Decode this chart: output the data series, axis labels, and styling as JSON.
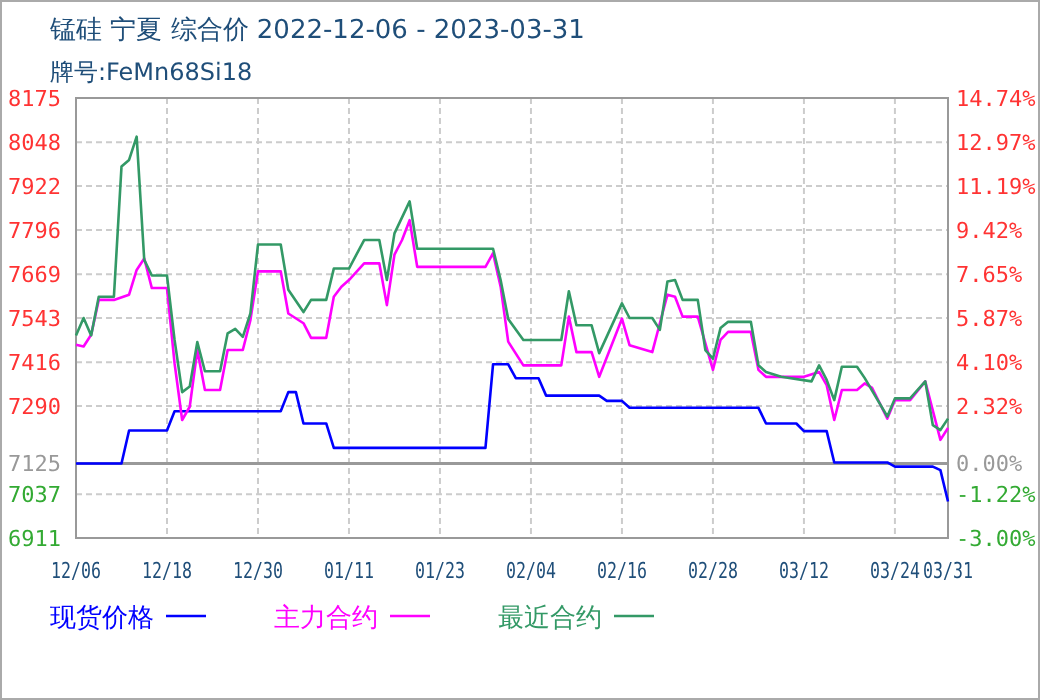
{
  "chart_data": {
    "type": "line",
    "title": "锰硅  宁夏  综合价  2022-12-06 - 2023-03-31",
    "subtitle": "牌号:FeMn68Si18",
    "xlim": [
      "2022-12-06",
      "2023-03-31"
    ],
    "xticks": [
      {
        "value": "2022-12-06",
        "label": "12/06"
      },
      {
        "value": "2022-12-18",
        "label": "12/18"
      },
      {
        "value": "2022-12-30",
        "label": "12/30"
      },
      {
        "value": "2023-01-11",
        "label": "01/11"
      },
      {
        "value": "2023-01-23",
        "label": "01/23"
      },
      {
        "value": "2023-02-04",
        "label": "02/04"
      },
      {
        "value": "2023-02-16",
        "label": "02/16"
      },
      {
        "value": "2023-02-28",
        "label": "02/28"
      },
      {
        "value": "2023-03-12",
        "label": "03/12"
      },
      {
        "value": "2023-03-24",
        "label": "03/24"
      },
      {
        "value": "2023-03-31",
        "label": "03/31"
      }
    ],
    "ylim": [
      6911,
      8175
    ],
    "yticks": [
      6911,
      7037,
      7125,
      7290,
      7416,
      7543,
      7669,
      7796,
      7922,
      8048,
      8175
    ],
    "y2lim": [
      -3.0,
      14.74
    ],
    "y2ticks": [
      {
        "value": -3,
        "label": "-3.00%"
      },
      {
        "value": -1.22,
        "label": "-1.22%"
      },
      {
        "value": 0,
        "label": "0.00%"
      },
      {
        "value": 2.32,
        "label": "2.32%"
      },
      {
        "value": 4.1,
        "label": "4.10%"
      },
      {
        "value": 5.87,
        "label": "5.87%"
      },
      {
        "value": 7.65,
        "label": "7.65%"
      },
      {
        "value": 9.42,
        "label": "9.42%"
      },
      {
        "value": 11.19,
        "label": "11.19%"
      },
      {
        "value": 12.97,
        "label": "12.97%"
      },
      {
        "value": 14.74,
        "label": "14.74%"
      }
    ],
    "grid": true,
    "legend": "bottom",
    "marker": "none",
    "line_style": "solid",
    "ref_lines": [
      {
        "axis": "y2",
        "value": 0,
        "color": "#999999"
      }
    ],
    "series": [
      {
        "name": "现货价格",
        "color": "#0000ff",
        "x": [
          "2022-12-06",
          "2022-12-12",
          "2022-12-13",
          "2022-12-18",
          "2022-12-19",
          "2023-01-02",
          "2023-01-03",
          "2023-01-04",
          "2023-01-05",
          "2023-01-08",
          "2023-01-09",
          "2023-01-29",
          "2023-01-30",
          "2023-02-01",
          "2023-02-02",
          "2023-02-05",
          "2023-02-06",
          "2023-02-13",
          "2023-02-14",
          "2023-02-16",
          "2023-02-17",
          "2023-03-06",
          "2023-03-07",
          "2023-03-11",
          "2023-03-12",
          "2023-03-15",
          "2023-03-16",
          "2023-03-23",
          "2023-03-24",
          "2023-03-29",
          "2023-03-30",
          "2023-03-31"
        ],
        "values": [
          7125,
          7125,
          7220,
          7220,
          7275,
          7275,
          7330,
          7330,
          7240,
          7240,
          7170,
          7170,
          7410,
          7410,
          7370,
          7370,
          7320,
          7320,
          7305,
          7305,
          7285,
          7285,
          7240,
          7240,
          7218,
          7218,
          7128,
          7128,
          7116,
          7116,
          7106,
          7016
        ]
      },
      {
        "name": "主力合约",
        "color": "#ff00ff",
        "x": [
          "2022-12-06",
          "2022-12-07",
          "2022-12-08",
          "2022-12-09",
          "2022-12-11",
          "2022-12-13",
          "2022-12-14",
          "2022-12-15",
          "2022-12-16",
          "2022-12-18",
          "2022-12-19",
          "2022-12-20",
          "2022-12-21",
          "2022-12-22",
          "2022-12-23",
          "2022-12-25",
          "2022-12-26",
          "2022-12-28",
          "2022-12-29",
          "2022-12-30",
          "2023-01-02",
          "2023-01-03",
          "2023-01-05",
          "2023-01-06",
          "2023-01-08",
          "2023-01-09",
          "2023-01-10",
          "2023-01-11",
          "2023-01-13",
          "2023-01-15",
          "2023-01-16",
          "2023-01-17",
          "2023-01-18",
          "2023-01-19",
          "2023-01-20",
          "2023-01-29",
          "2023-01-30",
          "2023-01-31",
          "2023-02-01",
          "2023-02-03",
          "2023-02-08",
          "2023-02-09",
          "2023-02-10",
          "2023-02-12",
          "2023-02-13",
          "2023-02-16",
          "2023-02-17",
          "2023-02-20",
          "2023-02-21",
          "2023-02-22",
          "2023-02-23",
          "2023-02-24",
          "2023-02-26",
          "2023-02-28",
          "2023-03-01",
          "2023-03-02",
          "2023-03-05",
          "2023-03-06",
          "2023-03-07",
          "2023-03-12",
          "2023-03-14",
          "2023-03-15",
          "2023-03-16",
          "2023-03-17",
          "2023-03-19",
          "2023-03-20",
          "2023-03-21",
          "2023-03-23",
          "2023-03-24",
          "2023-03-26",
          "2023-03-28",
          "2023-03-30",
          "2023-03-31"
        ],
        "values": [
          7466,
          7461,
          7495,
          7595,
          7595,
          7610,
          7681,
          7714,
          7629,
          7629,
          7413,
          7250,
          7288,
          7451,
          7336,
          7336,
          7451,
          7451,
          7537,
          7677,
          7677,
          7556,
          7528,
          7486,
          7486,
          7604,
          7633,
          7652,
          7700,
          7700,
          7580,
          7725,
          7767,
          7824,
          7690,
          7690,
          7729,
          7633,
          7475,
          7407,
          7407,
          7547,
          7445,
          7445,
          7374,
          7541,
          7465,
          7445,
          7528,
          7610,
          7604,
          7547,
          7547,
          7394,
          7480,
          7503,
          7503,
          7394,
          7374,
          7374,
          7388,
          7350,
          7250,
          7336,
          7336,
          7355,
          7342,
          7254,
          7307,
          7307,
          7361,
          7193,
          7227
        ]
      },
      {
        "name": "最近合约",
        "color": "#339966",
        "x": [
          "2022-12-06",
          "2022-12-07",
          "2022-12-08",
          "2022-12-09",
          "2022-12-11",
          "2022-12-12",
          "2022-12-13",
          "2022-12-14",
          "2022-12-15",
          "2022-12-16",
          "2022-12-18",
          "2022-12-19",
          "2022-12-20",
          "2022-12-21",
          "2022-12-22",
          "2022-12-23",
          "2022-12-25",
          "2022-12-26",
          "2022-12-27",
          "2022-12-28",
          "2022-12-29",
          "2022-12-30",
          "2023-01-02",
          "2023-01-03",
          "2023-01-05",
          "2023-01-06",
          "2023-01-08",
          "2023-01-09",
          "2023-01-11",
          "2023-01-13",
          "2023-01-15",
          "2023-01-16",
          "2023-01-17",
          "2023-01-19",
          "2023-01-20",
          "2023-01-30",
          "2023-01-31",
          "2023-02-01",
          "2023-02-03",
          "2023-02-08",
          "2023-02-09",
          "2023-02-10",
          "2023-02-12",
          "2023-02-13",
          "2023-02-16",
          "2023-02-17",
          "2023-02-20",
          "2023-02-21",
          "2023-02-22",
          "2023-02-23",
          "2023-02-24",
          "2023-02-26",
          "2023-02-27",
          "2023-02-28",
          "2023-03-01",
          "2023-03-02",
          "2023-03-05",
          "2023-03-06",
          "2023-03-07",
          "2023-03-09",
          "2023-03-13",
          "2023-03-14",
          "2023-03-15",
          "2023-03-16",
          "2023-03-17",
          "2023-03-19",
          "2023-03-20",
          "2023-03-23",
          "2023-03-24",
          "2023-03-26",
          "2023-03-28",
          "2023-03-29",
          "2023-03-30",
          "2023-03-31"
        ],
        "values": [
          7493,
          7543,
          7493,
          7604,
          7604,
          7978,
          7997,
          8064,
          7710,
          7665,
          7665,
          7480,
          7330,
          7346,
          7474,
          7390,
          7390,
          7499,
          7512,
          7489,
          7556,
          7754,
          7754,
          7624,
          7560,
          7595,
          7595,
          7685,
          7685,
          7767,
          7767,
          7652,
          7786,
          7878,
          7742,
          7742,
          7652,
          7540,
          7480,
          7480,
          7620,
          7522,
          7522,
          7442,
          7585,
          7543,
          7543,
          7509,
          7648,
          7652,
          7595,
          7595,
          7451,
          7426,
          7514,
          7532,
          7532,
          7407,
          7388,
          7374,
          7361,
          7407,
          7365,
          7307,
          7403,
          7403,
          7371,
          7260,
          7312,
          7312,
          7361,
          7235,
          7221,
          7254
        ]
      }
    ]
  }
}
